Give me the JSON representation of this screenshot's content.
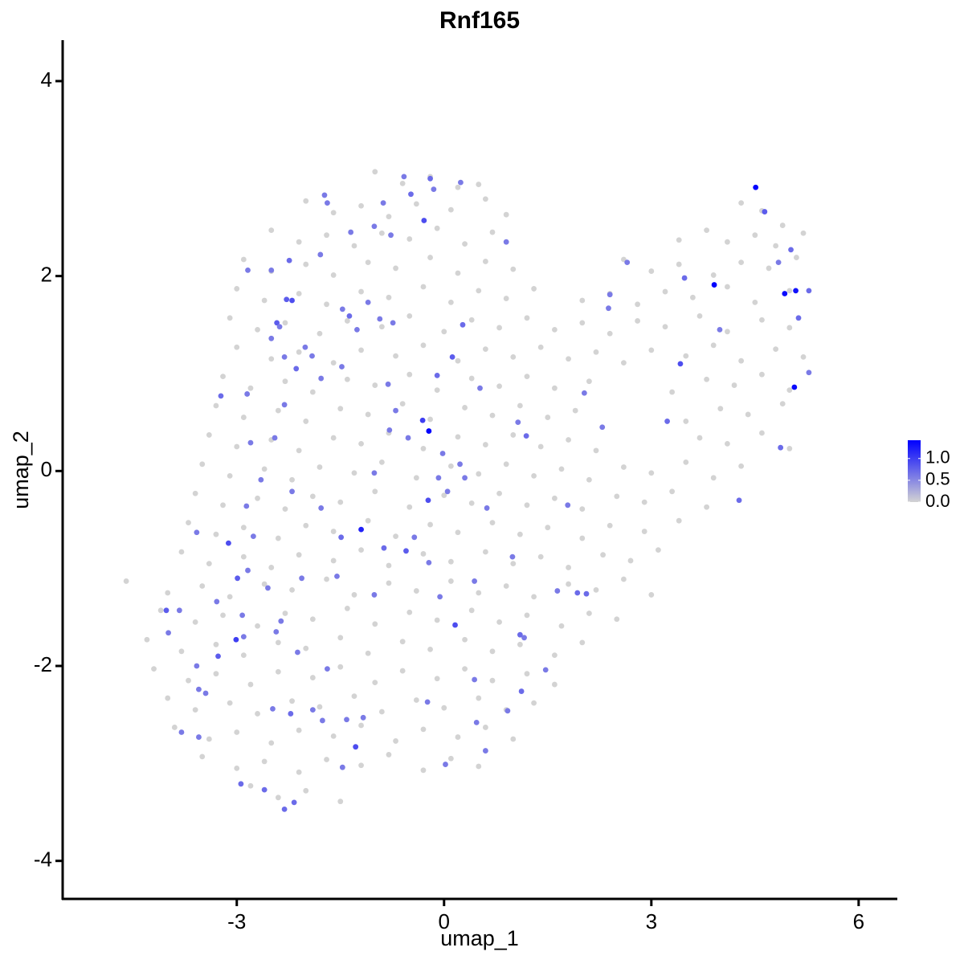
{
  "chart_data": {
    "type": "scatter",
    "title": "Rnf165",
    "xlabel": "umap_1",
    "ylabel": "umap_2",
    "xlim": [
      -5.52,
      6.56
    ],
    "ylim": [
      -4.39,
      4.42
    ],
    "xticks": [
      -3,
      0,
      3,
      6
    ],
    "yticks": [
      -4,
      -2,
      0,
      2,
      4
    ],
    "colorscale": {
      "low": "#d3d3d3",
      "high": "#0000ff",
      "lim": [
        0,
        1.42
      ],
      "ticks": [
        {
          "value": 0,
          "label": "0.0"
        },
        0.5,
        {
          "value": 1,
          "label": "1.0"
        }
      ]
    },
    "x": [
      -1.0,
      -0.6,
      -0.2,
      0.2,
      0.5,
      -2.0,
      -1.6,
      -1.2,
      -0.8,
      -0.4,
      0.1,
      0.6,
      0.9,
      4.3,
      4.6,
      4.9,
      -2.5,
      -2.1,
      -1.7,
      -1.3,
      -0.9,
      -0.5,
      -0.1,
      0.3,
      0.7,
      3.4,
      3.8,
      4.1,
      4.5,
      4.8,
      5.2,
      -2.9,
      -2.5,
      -2.0,
      -1.6,
      -1.1,
      -0.7,
      -0.2,
      0.2,
      0.6,
      1.0,
      2.6,
      3.0,
      3.4,
      3.9,
      4.3,
      4.7,
      5.1,
      -3.0,
      -2.6,
      -2.1,
      -1.7,
      -1.2,
      -0.8,
      -0.3,
      0.1,
      0.5,
      0.9,
      1.3,
      2.0,
      2.4,
      2.8,
      3.2,
      3.6,
      4.1,
      4.5,
      5.0,
      -3.1,
      -2.7,
      -2.3,
      -1.8,
      -1.4,
      -0.9,
      -0.5,
      0,
      0.4,
      0.8,
      1.2,
      1.6,
      2.0,
      2.4,
      2.8,
      3.2,
      3.7,
      4.1,
      4.6,
      5.0,
      -3.0,
      -2.5,
      -2.1,
      -1.6,
      -1.2,
      -0.7,
      -0.3,
      0.2,
      0.6,
      1.0,
      1.4,
      1.8,
      2.2,
      2.6,
      3.0,
      3.5,
      3.9,
      4.3,
      4.8,
      5.2,
      -3.2,
      -2.8,
      -2.3,
      -1.9,
      -1.4,
      -1.0,
      -0.5,
      -0.1,
      0.4,
      0.8,
      1.2,
      1.6,
      2.1,
      3.3,
      3.8,
      4.2,
      4.6,
      5.0,
      -3.3,
      -2.9,
      -2.4,
      -2.0,
      -1.5,
      -1.1,
      -0.6,
      -0.2,
      0.3,
      0.7,
      1.1,
      1.5,
      1.9,
      3.5,
      4.0,
      4.4,
      4.9,
      -3.4,
      -3.0,
      -2.5,
      -2.1,
      -1.6,
      -1.2,
      -0.8,
      -0.3,
      0.2,
      0.6,
      1.0,
      1.4,
      1.8,
      2.2,
      3.7,
      4.1,
      4.6,
      5.0,
      -3.5,
      -3.1,
      -2.6,
      -2.2,
      -1.8,
      -1.3,
      -0.9,
      -0.4,
      0.1,
      0.5,
      0.9,
      1.3,
      1.7,
      2.1,
      2.6,
      3.0,
      3.5,
      3.9,
      4.3,
      -3.6,
      -3.2,
      -2.7,
      -2.3,
      -1.9,
      -1.5,
      -1.0,
      -0.5,
      0,
      0.4,
      0.8,
      1.2,
      1.6,
      2.0,
      2.5,
      2.9,
      3.3,
      3.8,
      -3.7,
      -3.3,
      -2.9,
      -2.4,
      -2.0,
      -1.6,
      -1.1,
      -0.7,
      -0.2,
      0.2,
      0.7,
      1.1,
      1.5,
      2.0,
      2.4,
      2.9,
      3.4,
      -3.8,
      -3.4,
      -2.9,
      -2.5,
      -2.1,
      -1.6,
      -1.2,
      -0.8,
      -0.3,
      0.1,
      0.6,
      1.0,
      1.4,
      1.8,
      2.3,
      2.7,
      3.1,
      -4.6,
      -4.0,
      -3.5,
      -3.1,
      -2.6,
      -2.2,
      -1.7,
      -1.3,
      -0.8,
      -0.4,
      0.1,
      0.5,
      0.9,
      1.3,
      1.8,
      2.2,
      2.6,
      3.0,
      -4.1,
      -3.6,
      -3.2,
      -2.7,
      -2.3,
      -1.9,
      -1.4,
      -1.0,
      -0.5,
      -0.1,
      0.4,
      0.8,
      1.2,
      1.7,
      2.1,
      2.5,
      -4.3,
      -3.8,
      -3.3,
      -2.9,
      -2.4,
      -2.0,
      -1.5,
      -1.1,
      -0.6,
      -0.2,
      0.3,
      0.7,
      1.1,
      1.6,
      2.0,
      -4.2,
      -3.7,
      -3.3,
      -2.8,
      -2.4,
      -1.9,
      -1.5,
      -1.0,
      -0.6,
      -0.1,
      0.3,
      0.7,
      1.2,
      1.6,
      -4.0,
      -3.6,
      -3.1,
      -2.7,
      -2.2,
      -1.8,
      -1.3,
      -0.9,
      -0.4,
      0,
      0.5,
      0.9,
      1.3,
      -3.9,
      -3.4,
      -3.0,
      -2.5,
      -2.1,
      -1.6,
      -1.2,
      -0.7,
      -0.3,
      0.2,
      0.6,
      1.0,
      -3.5,
      -3.0,
      -2.6,
      -2.1,
      -1.7,
      -1.2,
      -0.8,
      -0.3,
      0.1,
      0.5,
      -2.8,
      -2.4,
      -2.0,
      -1.5,
      4.64,
      5.02,
      5.28,
      4.84,
      5.13,
      5.28,
      4.87,
      4.27,
      3.42,
      3.23,
      3.48,
      3.99,
      2.4,
      2.38,
      2.65,
      2.03,
      2.29,
      1.79,
      1.93,
      2.06,
      1.64,
      1.1,
      1.16,
      1.12,
      1.47,
      0.92,
      0.47,
      0.6,
      0.02,
      0.16,
      0.12,
      0.27,
      -0.1,
      -0.29,
      -0.48,
      -0.2,
      -0.15,
      -0.58,
      0.24,
      0.9,
      -0.77,
      -0.88,
      -1.01,
      -1.35,
      -1.69,
      -1.73,
      -1.79,
      -2.24,
      -2.5,
      -2.84,
      -2.28,
      -2.2,
      -2.42,
      -2.38,
      -1.47,
      -1.37,
      -1.1,
      -0.74,
      -0.93,
      -1.26,
      -1.78,
      -1.48,
      -0.81,
      -2.01,
      -1.91,
      -2.31,
      -2.14,
      -2.5,
      -3.23,
      -2.31,
      -2.85,
      -0.7,
      0.52,
      1.07,
      1.19,
      -0.08,
      -0.23,
      0.05,
      0.23,
      0.3,
      -0.02,
      -0.52,
      -1.01,
      -0.79,
      -1.78,
      -2.2,
      -2.45,
      -2.8,
      -2.65,
      -2.86,
      -2.76,
      -3.12,
      -3.58,
      -1.49,
      -0.87,
      -0.55,
      -0.43,
      0.62,
      0.99,
      0.44,
      -0.06,
      -1.01,
      -1.55,
      -2.06,
      -2.55,
      -2.99,
      -2.84,
      -2.92,
      -3.01,
      -2.9,
      -3.29,
      -4.02,
      -3.99,
      -3.83,
      -3.27,
      -3.58,
      -3.55,
      -3.45,
      -3.8,
      -3.55,
      -2.94,
      -2.6,
      -2.31,
      -2.17,
      -2.48,
      -2.22,
      -1.9,
      -1.76,
      -1.69,
      -2.12,
      -2.43,
      -2.36,
      -1.41,
      -1.28,
      -1.47,
      -1.17,
      -0.24,
      0.44,
      -0.22,
      4.51,
      3.91,
      4.93,
      5.09,
      5.07,
      -0.22,
      -1.2,
      -0.31
    ],
    "y": [
      3.07,
      2.95,
      3.02,
      2.91,
      2.94,
      2.77,
      2.65,
      2.72,
      2.61,
      2.74,
      2.68,
      2.79,
      2.63,
      2.75,
      2.67,
      2.52,
      2.47,
      2.35,
      2.42,
      2.31,
      2.44,
      2.38,
      2.49,
      2.33,
      2.45,
      2.37,
      2.47,
      2.35,
      2.42,
      2.31,
      2.44,
      2.17,
      2.05,
      2.12,
      2.01,
      2.14,
      2.08,
      2.19,
      2.03,
      2.15,
      2.07,
      2.17,
      2.05,
      2.12,
      2.01,
      2.14,
      2.08,
      2.19,
      1.87,
      1.75,
      1.82,
      1.71,
      1.84,
      1.78,
      1.89,
      1.73,
      1.85,
      1.77,
      1.87,
      1.75,
      1.82,
      1.71,
      1.84,
      1.78,
      1.89,
      1.73,
      1.85,
      1.57,
      1.45,
      1.52,
      1.41,
      1.54,
      1.48,
      1.59,
      1.43,
      1.55,
      1.47,
      1.57,
      1.45,
      1.52,
      1.41,
      1.54,
      1.48,
      1.59,
      1.43,
      1.55,
      1.47,
      1.27,
      1.15,
      1.22,
      1.11,
      1.24,
      1.18,
      1.29,
      1.13,
      1.25,
      1.17,
      1.27,
      1.15,
      1.22,
      1.11,
      1.24,
      1.18,
      1.29,
      1.13,
      1.25,
      1.17,
      0.97,
      0.85,
      0.92,
      0.81,
      0.94,
      0.88,
      0.99,
      0.83,
      0.95,
      0.87,
      0.97,
      0.85,
      0.92,
      0.81,
      0.94,
      0.88,
      0.99,
      0.83,
      0.67,
      0.55,
      0.62,
      0.51,
      0.64,
      0.58,
      0.69,
      0.53,
      0.65,
      0.57,
      0.67,
      0.55,
      0.62,
      0.51,
      0.64,
      0.58,
      0.69,
      0.37,
      0.25,
      0.32,
      0.21,
      0.34,
      0.28,
      0.39,
      0.23,
      0.35,
      0.27,
      0.37,
      0.25,
      0.32,
      0.21,
      0.34,
      0.28,
      0.39,
      0.23,
      0.07,
      -0.05,
      0.02,
      -0.09,
      0.04,
      -0.02,
      0.09,
      -0.07,
      0.05,
      -0.03,
      0.07,
      -0.05,
      0.02,
      -0.09,
      0.04,
      -0.02,
      0.09,
      -0.07,
      0.05,
      -0.23,
      -0.35,
      -0.28,
      -0.39,
      -0.26,
      -0.32,
      -0.21,
      -0.37,
      -0.25,
      -0.33,
      -0.23,
      -0.35,
      -0.28,
      -0.39,
      -0.26,
      -0.32,
      -0.21,
      -0.37,
      -0.53,
      -0.65,
      -0.58,
      -0.69,
      -0.56,
      -0.62,
      -0.51,
      -0.67,
      -0.55,
      -0.63,
      -0.53,
      -0.65,
      -0.58,
      -0.69,
      -0.56,
      -0.62,
      -0.51,
      -0.83,
      -0.95,
      -0.88,
      -0.99,
      -0.86,
      -0.92,
      -0.81,
      -0.97,
      -0.85,
      -0.93,
      -0.83,
      -0.95,
      -0.88,
      -0.99,
      -0.86,
      -0.92,
      -0.81,
      -1.13,
      -1.25,
      -1.18,
      -1.29,
      -1.16,
      -1.22,
      -1.11,
      -1.27,
      -1.15,
      -1.23,
      -1.13,
      -1.25,
      -1.18,
      -1.29,
      -1.16,
      -1.22,
      -1.11,
      -1.27,
      -1.43,
      -1.55,
      -1.48,
      -1.59,
      -1.46,
      -1.52,
      -1.41,
      -1.57,
      -1.45,
      -1.53,
      -1.43,
      -1.55,
      -1.48,
      -1.59,
      -1.46,
      -1.52,
      -1.73,
      -1.85,
      -1.78,
      -1.89,
      -1.76,
      -1.82,
      -1.71,
      -1.87,
      -1.75,
      -1.83,
      -1.73,
      -1.85,
      -1.78,
      -1.89,
      -1.76,
      -2.03,
      -2.15,
      -2.08,
      -2.19,
      -2.06,
      -2.12,
      -2.01,
      -2.17,
      -2.05,
      -2.13,
      -2.03,
      -2.15,
      -2.08,
      -2.19,
      -2.33,
      -2.45,
      -2.38,
      -2.49,
      -2.36,
      -2.42,
      -2.31,
      -2.47,
      -2.35,
      -2.43,
      -2.33,
      -2.45,
      -2.38,
      -2.63,
      -2.75,
      -2.68,
      -2.79,
      -2.66,
      -2.72,
      -2.61,
      -2.77,
      -2.65,
      -2.73,
      -2.63,
      -2.75,
      -2.93,
      -3.05,
      -2.98,
      -3.09,
      -2.96,
      -3.02,
      -2.91,
      -3.07,
      -2.95,
      -3.03,
      -3.23,
      -3.35,
      -3.28,
      -3.39,
      2.66,
      2.27,
      1.85,
      2.14,
      1.57,
      1.01,
      0.24,
      -0.3,
      1.1,
      0.51,
      1.98,
      1.45,
      1.81,
      1.67,
      2.14,
      0.8,
      0.45,
      -0.35,
      -1.25,
      -1.26,
      -1.23,
      -1.68,
      -1.71,
      -2.26,
      -2.04,
      -2.46,
      -2.58,
      -2.87,
      -3.01,
      -1.58,
      1.17,
      1.5,
      0.98,
      2.57,
      2.84,
      3.0,
      2.89,
      3.02,
      2.96,
      2.35,
      2.42,
      2.75,
      2.51,
      2.45,
      2.75,
      2.83,
      2.22,
      2.16,
      2.06,
      2.06,
      1.76,
      1.75,
      1.52,
      1.48,
      1.66,
      1.59,
      1.73,
      1.52,
      1.56,
      1.45,
      0.95,
      1.07,
      0.89,
      1.27,
      1.18,
      1.17,
      1.05,
      1.36,
      0.77,
      0.68,
      0.79,
      0.62,
      0.85,
      0.5,
      0.36,
      -0.07,
      -0.3,
      -0.21,
      0.07,
      -0.07,
      0.18,
      0.34,
      -0.02,
      0.42,
      -0.38,
      -0.21,
      0.34,
      0.29,
      -0.09,
      -0.36,
      -0.67,
      -0.74,
      -0.63,
      -0.68,
      -0.79,
      -0.82,
      -0.68,
      -0.38,
      -0.88,
      -1.13,
      -1.29,
      -1.27,
      -1.08,
      -1.1,
      -1.2,
      -1.1,
      -1.02,
      -1.48,
      -1.73,
      -1.7,
      -1.34,
      -1.43,
      -1.66,
      -1.43,
      -1.9,
      -2.0,
      -2.24,
      -2.28,
      -2.68,
      -2.73,
      -3.21,
      -3.27,
      -3.47,
      -3.4,
      -2.44,
      -2.49,
      -2.45,
      -2.56,
      -2.03,
      -1.86,
      -1.65,
      -1.54,
      -2.55,
      -2.83,
      -3.04,
      -2.53,
      -2.37,
      -2.14,
      -0.94,
      2.91,
      1.91,
      1.82,
      1.85,
      0.86,
      0.41,
      -0.6,
      0.52
    ],
    "values": [
      0,
      0,
      0,
      0,
      0,
      0,
      0,
      0,
      0,
      0,
      0,
      0,
      0,
      0,
      0,
      0,
      0,
      0,
      0,
      0,
      0,
      0,
      0,
      0,
      0,
      0,
      0,
      0,
      0,
      0,
      0,
      0,
      0,
      0,
      0,
      0,
      0,
      0,
      0,
      0,
      0,
      0,
      0,
      0,
      0,
      0,
      0,
      0,
      0,
      0,
      0,
      0,
      0,
      0,
      0,
      0,
      0,
      0,
      0,
      0,
      0,
      0,
      0,
      0,
      0,
      0,
      0,
      0,
      0,
      0,
      0,
      0,
      0,
      0,
      0,
      0,
      0,
      0,
      0,
      0,
      0,
      0,
      0,
      0,
      0,
      0,
      0,
      0,
      0,
      0,
      0,
      0,
      0,
      0,
      0,
      0,
      0,
      0,
      0,
      0,
      0,
      0,
      0,
      0,
      0,
      0,
      0,
      0,
      0,
      0,
      0,
      0,
      0,
      0,
      0,
      0,
      0,
      0,
      0,
      0,
      0,
      0,
      0,
      0,
      0,
      0,
      0,
      0,
      0,
      0,
      0,
      0,
      0,
      0,
      0,
      0,
      0,
      0,
      0,
      0,
      0,
      0,
      0,
      0,
      0,
      0,
      0,
      0,
      0,
      0,
      0,
      0,
      0,
      0,
      0,
      0,
      0,
      0,
      0,
      0,
      0,
      0,
      0,
      0,
      0,
      0,
      0,
      0,
      0,
      0,
      0,
      0,
      0,
      0,
      0,
      0,
      0,
      0,
      0,
      0,
      0,
      0,
      0,
      0,
      0,
      0,
      0,
      0,
      0,
      0,
      0,
      0,
      0,
      0,
      0,
      0,
      0,
      0,
      0,
      0,
      0,
      0,
      0,
      0,
      0,
      0,
      0,
      0,
      0,
      0,
      0,
      0,
      0,
      0,
      0,
      0,
      0,
      0,
      0,
      0,
      0,
      0,
      0,
      0,
      0,
      0,
      0,
      0,
      0,
      0,
      0,
      0,
      0,
      0,
      0,
      0,
      0,
      0,
      0,
      0,
      0,
      0,
      0,
      0,
      0,
      0,
      0,
      0,
      0,
      0,
      0,
      0,
      0,
      0,
      0,
      0,
      0,
      0,
      0,
      0,
      0,
      0,
      0,
      0,
      0,
      0,
      0,
      0,
      0,
      0,
      0,
      0,
      0,
      0,
      0,
      0,
      0,
      0,
      0,
      0,
      0,
      0,
      0,
      0,
      0,
      0,
      0,
      0,
      0,
      0,
      0,
      0,
      0,
      0,
      0,
      0,
      0,
      0,
      0,
      0,
      0,
      0,
      0,
      0,
      0,
      0,
      0,
      0,
      0,
      0,
      0,
      0,
      0,
      0,
      0,
      0,
      0,
      0,
      0,
      0,
      0,
      0,
      0,
      0,
      0,
      0,
      0,
      0,
      0,
      0,
      0,
      0,
      0,
      0.8,
      0.7,
      0.7,
      0.6,
      0.7,
      0.6,
      0.7,
      0.7,
      0.9,
      0.7,
      0.7,
      0.6,
      0.6,
      0.6,
      0.6,
      0.6,
      0.6,
      0.6,
      0.7,
      0.7,
      0.6,
      0.7,
      0.6,
      0.7,
      0.6,
      0.6,
      0.6,
      0.6,
      0.6,
      0.9,
      0.8,
      0.7,
      0.7,
      0.9,
      0.7,
      0.7,
      0.6,
      0.6,
      0.6,
      0.6,
      0.6,
      0.6,
      0.6,
      0.6,
      0.6,
      0.6,
      0.6,
      0.7,
      0.6,
      0.6,
      0.8,
      0.9,
      0.8,
      0.6,
      0.6,
      0.7,
      0.6,
      0.6,
      0.6,
      0.6,
      0.6,
      0.6,
      0.6,
      0.6,
      0.6,
      0.6,
      0.7,
      0.6,
      0.7,
      0.6,
      0.6,
      0.6,
      0.6,
      0.6,
      0.7,
      0.6,
      0.9,
      0.6,
      0.6,
      0.6,
      0.6,
      0.6,
      0.6,
      0.6,
      0.6,
      0.6,
      0.6,
      0.6,
      0.6,
      0.6,
      0.6,
      0.9,
      0.6,
      0.7,
      0.7,
      0.8,
      0.6,
      0.6,
      0.6,
      0.6,
      0.6,
      0.6,
      0.6,
      0.6,
      0.6,
      0.8,
      0.6,
      0.6,
      1.0,
      0.6,
      0.6,
      0.8,
      0.6,
      0.6,
      0.8,
      0.6,
      0.6,
      0.6,
      0.6,
      0.6,
      0.7,
      0.7,
      0.7,
      0.7,
      0.6,
      0.7,
      0.6,
      0.6,
      0.6,
      0.6,
      0.6,
      0.6,
      0.6,
      0.9,
      0.6,
      0.6,
      0.6,
      0.6,
      0.6,
      1.4,
      1.4,
      1.35,
      1.3,
      1.35,
      1.4,
      1.2,
      1.0
    ]
  }
}
